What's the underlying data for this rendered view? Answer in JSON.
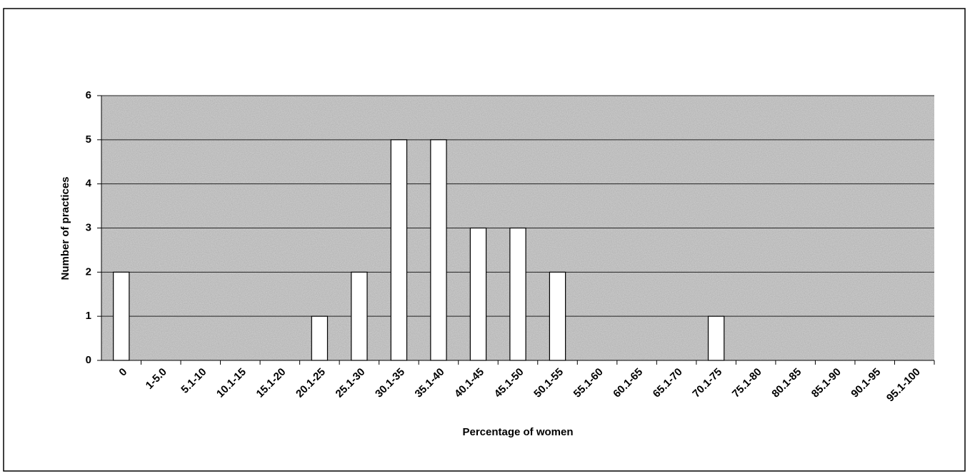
{
  "chart_data": {
    "type": "bar",
    "xlabel": "Percentage of women",
    "ylabel": "Number of practices",
    "categories": [
      "0",
      "1-5.0",
      "5.1-10",
      "10.1-15",
      "15.1-20",
      "20.1-25",
      "25.1-30",
      "30.1-35",
      "35.1-40",
      "40.1-45",
      "45.1-50",
      "50.1-55",
      "55.1-60",
      "60.1-65",
      "65.1-70",
      "70.1-75",
      "75.1-80",
      "80.1-85",
      "85.1-90",
      "90.1-95",
      "95.1-100"
    ],
    "values": [
      2,
      0,
      0,
      0,
      0,
      1,
      2,
      5,
      5,
      3,
      3,
      2,
      0,
      0,
      0,
      1,
      0,
      0,
      0,
      0,
      0
    ],
    "color": "#ffffff",
    "ylim": [
      0,
      6
    ],
    "yticks": [
      0,
      1,
      2,
      3,
      4,
      5,
      6
    ],
    "grid": true
  }
}
